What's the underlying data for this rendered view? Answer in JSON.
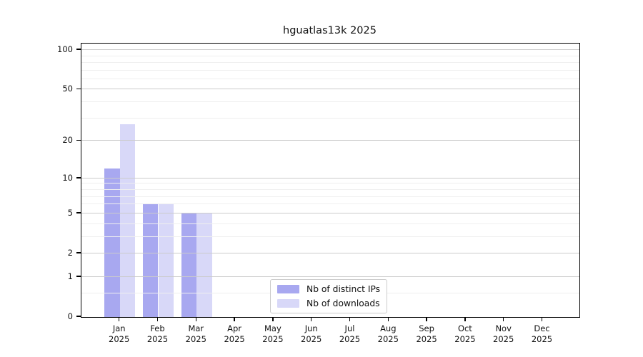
{
  "chart_data": {
    "type": "bar",
    "title": "hguatlas13k 2025",
    "categories": [
      "Jan 2025",
      "Feb 2025",
      "Mar 2025",
      "Apr 2025",
      "May 2025",
      "Jun 2025",
      "Jul 2025",
      "Aug 2025",
      "Sep 2025",
      "Oct 2025",
      "Nov 2025",
      "Dec 2025"
    ],
    "series": [
      {
        "name": "Nb of distinct IPs",
        "color": "#a8a8f0",
        "values": [
          12,
          6,
          5,
          0,
          0,
          0,
          0,
          0,
          0,
          0,
          0,
          0
        ]
      },
      {
        "name": "Nb of downloads",
        "color": "#d8d8f8",
        "values": [
          27,
          6,
          5,
          0,
          0,
          0,
          0,
          0,
          0,
          0,
          0,
          0
        ]
      }
    ],
    "yscale": "log(1+x)",
    "yticks": [
      0,
      1,
      2,
      5,
      10,
      20,
      50,
      100
    ],
    "minor_yticks": [
      0.5,
      3,
      4,
      6,
      7,
      8,
      9,
      30,
      40,
      60,
      70,
      80,
      90
    ],
    "ylim": [
      0,
      112
    ],
    "xlabel": "",
    "ylabel": "",
    "grid": true,
    "legend_position": "lower center",
    "colors": {
      "axis": "#000000",
      "grid_major": "#cbcbcb",
      "grid_minor": "#efefef",
      "background": "#ffffff"
    }
  }
}
